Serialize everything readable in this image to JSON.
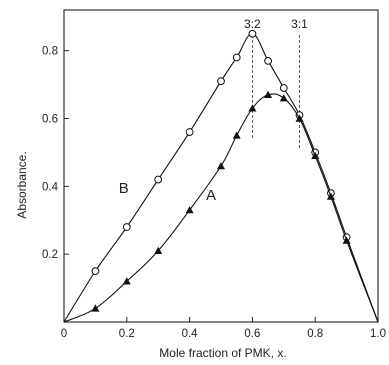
{
  "chart_data": {
    "type": "line",
    "title": "",
    "xlabel": "Mole fraction of PMK, x.",
    "ylabel": "Absorbance.",
    "xlim": [
      0,
      1.0
    ],
    "ylim": [
      0,
      0.92
    ],
    "xticks": [
      {
        "value": 0,
        "label": "0"
      },
      {
        "value": 0.2,
        "label": "0.2"
      },
      {
        "value": 0.4,
        "label": "0.4"
      },
      {
        "value": 0.6,
        "label": "0.6"
      },
      {
        "value": 0.8,
        "label": "0.8"
      },
      {
        "value": 1.0,
        "label": "1.0"
      }
    ],
    "yticks": [
      {
        "value": 0.2,
        "label": "0.2"
      },
      {
        "value": 0.4,
        "label": "0.4"
      },
      {
        "value": 0.6,
        "label": "0.6"
      },
      {
        "value": 0.8,
        "label": "0.8"
      }
    ],
    "grid": false,
    "series": [
      {
        "name": "B",
        "marker": "open-circle",
        "x": [
          0,
          0.1,
          0.2,
          0.3,
          0.4,
          0.5,
          0.55,
          0.6,
          0.65,
          0.7,
          0.75,
          0.8,
          0.85,
          0.9,
          1.0
        ],
        "y": [
          0,
          0.15,
          0.28,
          0.42,
          0.56,
          0.71,
          0.78,
          0.85,
          0.77,
          0.69,
          0.61,
          0.5,
          0.38,
          0.25,
          0
        ]
      },
      {
        "name": "A",
        "marker": "filled-triangle",
        "x": [
          0,
          0.1,
          0.2,
          0.3,
          0.4,
          0.5,
          0.55,
          0.6,
          0.65,
          0.7,
          0.75,
          0.8,
          0.85,
          0.9,
          1.0
        ],
        "y": [
          0,
          0.04,
          0.12,
          0.21,
          0.33,
          0.46,
          0.55,
          0.63,
          0.67,
          0.66,
          0.6,
          0.49,
          0.37,
          0.24,
          0
        ]
      }
    ],
    "annotations": [
      {
        "text": "3:2",
        "x": 0.6
      },
      {
        "text": "3:1",
        "x": 0.75
      }
    ]
  }
}
